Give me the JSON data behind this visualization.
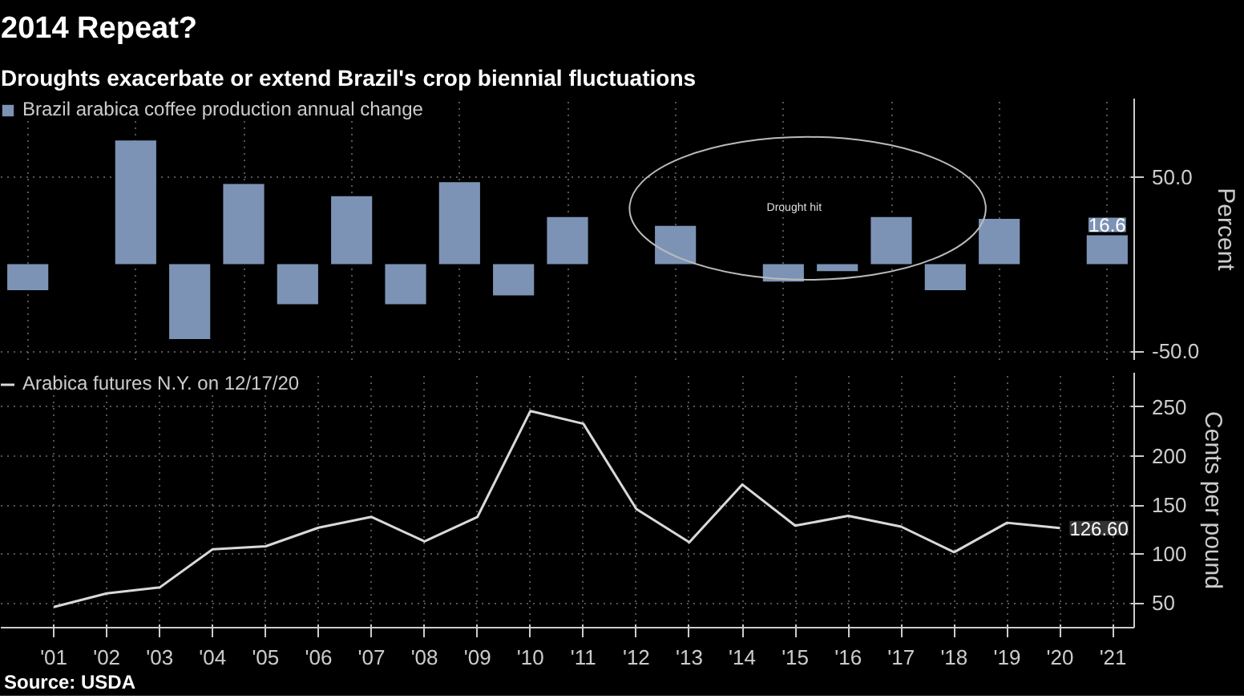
{
  "chart_data": [
    {
      "type": "bar",
      "title": "2014 Repeat?",
      "subtitle": "Droughts exacerbate or extend Brazil's crop biennial fluctuations",
      "ylabel": "Percent",
      "categories": [
        null,
        null,
        null,
        null,
        null,
        null,
        null,
        null,
        null,
        null,
        null,
        null,
        null,
        null,
        null,
        null,
        null,
        null,
        null,
        null,
        null
      ],
      "series": [
        {
          "name": "Brazil arabica coffee production annual change",
          "color": "#7d93b5",
          "values": [
            -15,
            null,
            71,
            -43,
            46,
            -23,
            39,
            -23,
            47,
            -18,
            27,
            null,
            22,
            null,
            -10,
            -4,
            27,
            -15,
            26,
            null,
            16.6
          ],
          "value_labels": [
            null,
            null,
            null,
            null,
            null,
            null,
            null,
            null,
            null,
            null,
            null,
            null,
            null,
            null,
            null,
            null,
            null,
            null,
            null,
            null,
            "16.6"
          ]
        }
      ],
      "ylim": [
        -55,
        95
      ],
      "yticks": [
        {
          "value": 50,
          "label": "50.0"
        },
        {
          "value": -50,
          "label": "-50.0"
        }
      ],
      "annotations": [
        "Drought hit"
      ],
      "grid": true,
      "legend": "top left",
      "tick_labels": "y"
    },
    {
      "type": "line",
      "ylabel": "Cents per pound",
      "x": [
        2001,
        2002,
        2003,
        2004,
        2005,
        2006,
        2007,
        2008,
        2009,
        2010,
        2011,
        2012,
        2013,
        2014,
        2015,
        2016,
        2017,
        2018,
        2019,
        2020
      ],
      "series": [
        {
          "name": "Arabica futures N.Y. on 12/17/20",
          "color": "#d9d9d9",
          "values": [
            46,
            60,
            66,
            105,
            108,
            127,
            138,
            113,
            138,
            246,
            233,
            146,
            112,
            171,
            129,
            139,
            128,
            102,
            132,
            126.6
          ],
          "value_labels": [
            null,
            null,
            null,
            null,
            null,
            null,
            null,
            null,
            null,
            null,
            null,
            null,
            null,
            null,
            null,
            null,
            null,
            null,
            null,
            "126.60"
          ]
        }
      ],
      "xlim": [
        2000,
        2021.4
      ],
      "xticks": [
        {
          "value": 2001,
          "label": "'01"
        },
        {
          "value": 2002,
          "label": "'02"
        },
        {
          "value": 2003,
          "label": "'03"
        },
        {
          "value": 2004,
          "label": "'04"
        },
        {
          "value": 2005,
          "label": "'05"
        },
        {
          "value": 2006,
          "label": "'06"
        },
        {
          "value": 2007,
          "label": "'07"
        },
        {
          "value": 2008,
          "label": "'08"
        },
        {
          "value": 2009,
          "label": "'09"
        },
        {
          "value": 2010,
          "label": "'10"
        },
        {
          "value": 2011,
          "label": "'11"
        },
        {
          "value": 2012,
          "label": "'12"
        },
        {
          "value": 2013,
          "label": "'13"
        },
        {
          "value": 2014,
          "label": "'14"
        },
        {
          "value": 2015,
          "label": "'15"
        },
        {
          "value": 2016,
          "label": "'16"
        },
        {
          "value": 2017,
          "label": "'17"
        },
        {
          "value": 2018,
          "label": "'18"
        },
        {
          "value": 2019,
          "label": "'19"
        },
        {
          "value": 2020,
          "label": "'20"
        },
        {
          "value": 2021,
          "label": "'21"
        }
      ],
      "ylim": [
        25,
        285
      ],
      "yticks": [
        50,
        100,
        150,
        200,
        250
      ],
      "annotations": [
        "Source: USDA"
      ],
      "grid": true,
      "legend": "top left",
      "marker": "none",
      "line_style": "solid"
    }
  ]
}
